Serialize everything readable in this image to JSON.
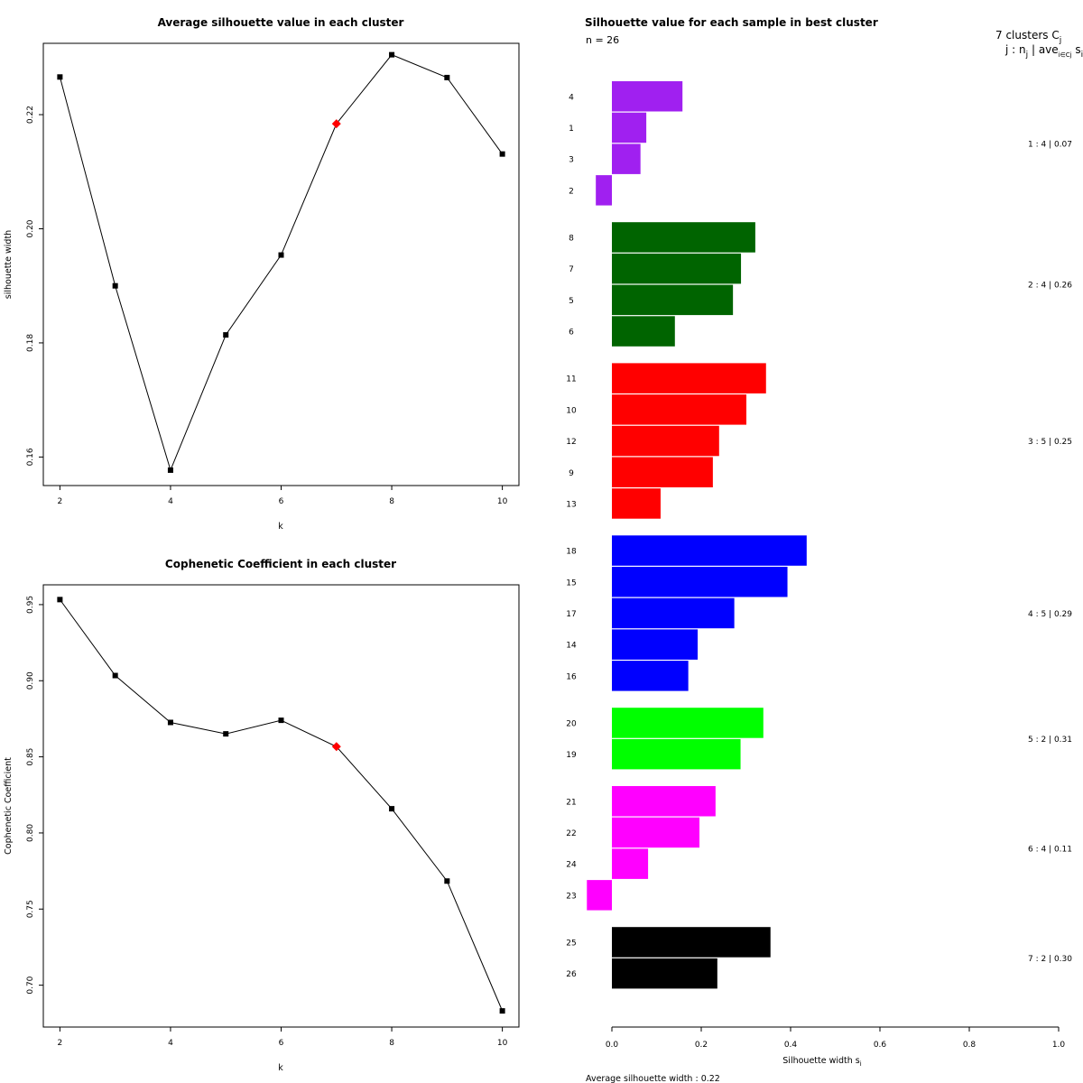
{
  "chart_data": [
    {
      "type": "line",
      "title": "Average silhouette value in each cluster",
      "xlabel": "k",
      "ylabel": "silhouette width",
      "x": [
        2,
        3,
        4,
        5,
        6,
        7,
        8,
        9,
        10
      ],
      "values": [
        0.2266,
        0.19,
        0.1577,
        0.1814,
        0.1954,
        0.2184,
        0.2305,
        0.2265,
        0.2131
      ],
      "highlight_x": 7,
      "xlim": [
        1.7,
        10.3
      ],
      "ylim": [
        0.155,
        0.2325
      ],
      "xticks": [
        2,
        4,
        6,
        8,
        10
      ],
      "xtick_labels": [
        "2",
        "4",
        "6",
        "8",
        "10"
      ],
      "yticks": [
        0.16,
        0.18,
        0.2,
        0.22
      ],
      "ytick_labels": [
        "0.16",
        "0.18",
        "0.20",
        "0.22"
      ]
    },
    {
      "type": "line",
      "title": "Cophenetic Coefficient in each cluster",
      "xlabel": "k",
      "ylabel": "Cophenetic Coefficient",
      "x": [
        2,
        3,
        4,
        5,
        6,
        7,
        8,
        9,
        10
      ],
      "values": [
        0.9533,
        0.9034,
        0.8726,
        0.8651,
        0.874,
        0.8567,
        0.8159,
        0.7684,
        0.6831
      ],
      "highlight_x": 7,
      "xlim": [
        1.7,
        10.3
      ],
      "ylim": [
        0.6725,
        0.963
      ],
      "xticks": [
        2,
        4,
        6,
        8,
        10
      ],
      "xtick_labels": [
        "2",
        "4",
        "6",
        "8",
        "10"
      ],
      "yticks": [
        0.7,
        0.75,
        0.8,
        0.85,
        0.9,
        0.95
      ],
      "ytick_labels": [
        "0.70",
        "0.75",
        "0.80",
        "0.85",
        "0.90",
        "0.95"
      ]
    },
    {
      "type": "bar",
      "orientation": "horizontal",
      "title": "Silhouette value for each sample in best cluster",
      "n_label": "n = 26",
      "header_line1": "7  clusters  C",
      "header_sub1": "j",
      "header_line2": "j :  n",
      "header_sub2a": "j",
      "header_line2b": " | ave",
      "header_sub2b": "i∈Cj",
      "header_line2c": " s",
      "header_sub2c": "i",
      "xlabel": "Silhouette width s",
      "xlabel_sub": "i",
      "xlim": [
        0,
        1
      ],
      "xticks": [
        0.0,
        0.2,
        0.4,
        0.6,
        0.8,
        1.0
      ],
      "xtick_labels": [
        "0.0",
        "0.2",
        "0.4",
        "0.6",
        "0.8",
        "1.0"
      ],
      "footer": "Average silhouette width :  0.22",
      "clusters": [
        {
          "summary": "1 :  4  |  0.07",
          "color": "#a020f0",
          "samples": [
            {
              "label": "4",
              "value": 0.158
            },
            {
              "label": "1",
              "value": 0.077
            },
            {
              "label": "3",
              "value": 0.064
            },
            {
              "label": "2",
              "value": -0.036
            }
          ]
        },
        {
          "summary": "2 :  4  |  0.26",
          "color": "#006400",
          "samples": [
            {
              "label": "8",
              "value": 0.321
            },
            {
              "label": "7",
              "value": 0.289
            },
            {
              "label": "5",
              "value": 0.271
            },
            {
              "label": "6",
              "value": 0.141
            }
          ]
        },
        {
          "summary": "3 :  5  |  0.25",
          "color": "#ff0000",
          "samples": [
            {
              "label": "11",
              "value": 0.345
            },
            {
              "label": "10",
              "value": 0.301
            },
            {
              "label": "12",
              "value": 0.24
            },
            {
              "label": "9",
              "value": 0.226
            },
            {
              "label": "13",
              "value": 0.109
            }
          ]
        },
        {
          "summary": "4 :  5  |  0.29",
          "color": "#0000ff",
          "samples": [
            {
              "label": "18",
              "value": 0.436
            },
            {
              "label": "15",
              "value": 0.393
            },
            {
              "label": "17",
              "value": 0.274
            },
            {
              "label": "14",
              "value": 0.192
            },
            {
              "label": "16",
              "value": 0.171
            }
          ]
        },
        {
          "summary": "5 :  2  |  0.31",
          "color": "#00ff00",
          "samples": [
            {
              "label": "20",
              "value": 0.339
            },
            {
              "label": "19",
              "value": 0.288
            }
          ]
        },
        {
          "summary": "6 :  4  |  0.11",
          "color": "#ff00ff",
          "samples": [
            {
              "label": "21",
              "value": 0.232
            },
            {
              "label": "22",
              "value": 0.196
            },
            {
              "label": "24",
              "value": 0.081
            },
            {
              "label": "23",
              "value": -0.056
            }
          ]
        },
        {
          "summary": "7 :  2  |  0.30",
          "color": "#000000",
          "samples": [
            {
              "label": "25",
              "value": 0.355
            },
            {
              "label": "26",
              "value": 0.236
            }
          ]
        }
      ]
    }
  ]
}
